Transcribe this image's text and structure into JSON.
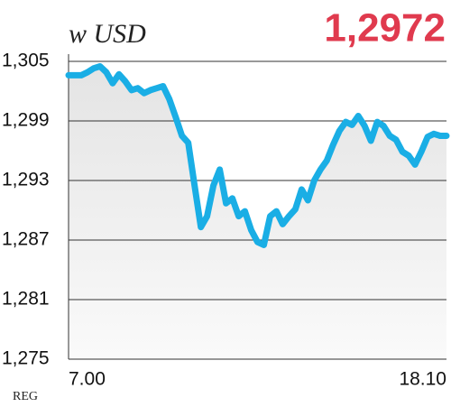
{
  "chart_data": {
    "type": "line",
    "title": "w USD",
    "highlight": {
      "value": 1.2972,
      "label": "1,2972"
    },
    "source": "REG",
    "categories": [
      "7.00",
      null,
      null,
      null,
      null,
      null,
      null,
      null,
      null,
      null,
      null,
      null,
      null,
      null,
      null,
      null,
      null,
      null,
      null,
      null,
      null,
      null,
      null,
      null,
      null,
      null,
      null,
      null,
      null,
      null,
      null,
      null,
      null,
      null,
      null,
      null,
      null,
      null,
      null,
      null,
      null,
      null,
      null,
      null,
      null,
      null,
      null,
      null,
      null,
      null,
      null,
      null,
      null,
      null,
      null,
      null,
      null,
      null,
      null,
      null,
      "18.10"
    ],
    "series": [
      {
        "color": "#1aaee5",
        "values": [
          1.3036,
          1.3036,
          1.3036,
          1.3039,
          1.3043,
          1.3045,
          1.3039,
          1.3028,
          1.3037,
          1.303,
          1.3021,
          1.3023,
          1.3018,
          1.3021,
          1.3023,
          1.3025,
          1.3012,
          1.2994,
          1.2975,
          1.2968,
          1.2925,
          1.2883,
          1.2894,
          1.2925,
          1.2941,
          1.2907,
          1.2912,
          1.2894,
          1.2899,
          1.288,
          1.2868,
          1.2865,
          1.2894,
          1.2899,
          1.2886,
          1.2894,
          1.2901,
          1.2921,
          1.291,
          1.293,
          1.2941,
          1.295,
          1.2966,
          1.298,
          1.2989,
          1.2986,
          1.2995,
          1.2985,
          1.297,
          1.2989,
          1.2985,
          1.2975,
          1.2971,
          1.2959,
          1.2955,
          1.2946,
          1.2959,
          1.2974,
          1.2977,
          1.2975,
          1.2975
        ]
      }
    ],
    "ylim": [
      1.275,
      1.305
    ],
    "yticks": [
      {
        "value": 1.275,
        "label": "1,275"
      },
      {
        "value": 1.281,
        "label": "1,281"
      },
      {
        "value": 1.287,
        "label": "1,287"
      },
      {
        "value": 1.293,
        "label": "1,293"
      },
      {
        "value": 1.299,
        "label": "1,299"
      },
      {
        "value": 1.305,
        "label": "1,305"
      }
    ],
    "grid": true
  }
}
